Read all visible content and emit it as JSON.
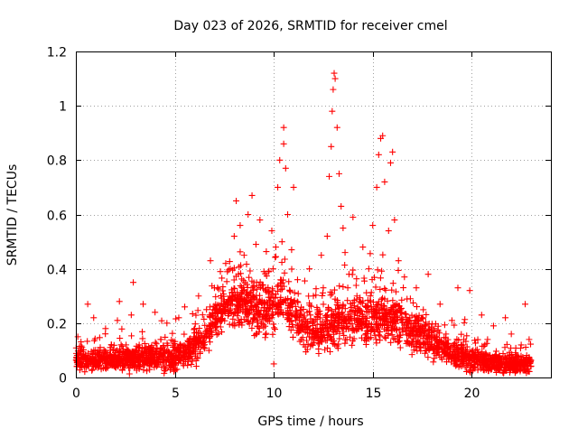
{
  "chart_data": {
    "type": "scatter",
    "title": "Day 023 of 2026, SRMTID for receiver cmel",
    "xlabel": "GPS time / hours",
    "ylabel": "SRMTID / TECUs",
    "xlim": [
      0,
      24
    ],
    "ylim": [
      0,
      1.2
    ],
    "x_ticks": [
      0,
      5,
      10,
      15,
      20
    ],
    "x_tick_labels": [
      "0",
      "5",
      "10",
      "15",
      "20"
    ],
    "y_ticks": [
      0,
      0.2,
      0.4,
      0.6,
      0.8,
      1.0,
      1.2
    ],
    "y_tick_labels": [
      "0",
      "0.2",
      "0.4",
      "0.6",
      "0.8",
      "1",
      "1.2"
    ],
    "grid": true,
    "legend": "none",
    "marker": "+",
    "point_color": "#ff0000",
    "series": [
      {
        "name": "SRMTID",
        "sample_points": [
          [
            0.1,
            0.15
          ],
          [
            0.3,
            0.05
          ],
          [
            0.6,
            0.27
          ],
          [
            0.9,
            0.22
          ],
          [
            1.2,
            0.08
          ],
          [
            1.5,
            0.18
          ],
          [
            1.8,
            0.12
          ],
          [
            2.1,
            0.21
          ],
          [
            2.2,
            0.28
          ],
          [
            2.5,
            0.06
          ],
          [
            2.8,
            0.23
          ],
          [
            2.9,
            0.35
          ],
          [
            3.2,
            0.12
          ],
          [
            3.4,
            0.27
          ],
          [
            3.7,
            0.09
          ],
          [
            4.0,
            0.24
          ],
          [
            4.3,
            0.14
          ],
          [
            4.6,
            0.2
          ],
          [
            4.9,
            0.07
          ],
          [
            5.2,
            0.22
          ],
          [
            5.5,
            0.26
          ],
          [
            5.7,
            0.12
          ],
          [
            6.0,
            0.18
          ],
          [
            6.2,
            0.3
          ],
          [
            6.6,
            0.25
          ],
          [
            6.8,
            0.43
          ],
          [
            7.0,
            0.33
          ],
          [
            7.3,
            0.39
          ],
          [
            7.5,
            0.28
          ],
          [
            7.8,
            0.4
          ],
          [
            8.0,
            0.52
          ],
          [
            8.1,
            0.65
          ],
          [
            8.3,
            0.56
          ],
          [
            8.5,
            0.45
          ],
          [
            8.7,
            0.6
          ],
          [
            8.8,
            0.31
          ],
          [
            8.9,
            0.67
          ],
          [
            9.1,
            0.49
          ],
          [
            9.3,
            0.58
          ],
          [
            9.5,
            0.39
          ],
          [
            9.7,
            0.27
          ],
          [
            9.9,
            0.54
          ],
          [
            10.0,
            0.05
          ],
          [
            10.1,
            0.48
          ],
          [
            10.2,
            0.7
          ],
          [
            10.3,
            0.8
          ],
          [
            10.5,
            0.86
          ],
          [
            10.5,
            0.92
          ],
          [
            10.6,
            0.77
          ],
          [
            10.7,
            0.6
          ],
          [
            10.9,
            0.47
          ],
          [
            11.0,
            0.7
          ],
          [
            11.2,
            0.36
          ],
          [
            11.5,
            0.22
          ],
          [
            11.8,
            0.4
          ],
          [
            12.0,
            0.3
          ],
          [
            12.2,
            0.17
          ],
          [
            12.4,
            0.45
          ],
          [
            12.5,
            0.33
          ],
          [
            12.7,
            0.52
          ],
          [
            12.8,
            0.74
          ],
          [
            12.9,
            0.85
          ],
          [
            12.95,
            0.98
          ],
          [
            13.0,
            1.06
          ],
          [
            13.05,
            1.12
          ],
          [
            13.1,
            1.1
          ],
          [
            13.2,
            0.92
          ],
          [
            13.3,
            0.75
          ],
          [
            13.4,
            0.63
          ],
          [
            13.5,
            0.55
          ],
          [
            13.6,
            0.46
          ],
          [
            13.8,
            0.38
          ],
          [
            14.0,
            0.59
          ],
          [
            14.2,
            0.3
          ],
          [
            14.5,
            0.48
          ],
          [
            14.8,
            0.4
          ],
          [
            15.0,
            0.56
          ],
          [
            15.2,
            0.7
          ],
          [
            15.3,
            0.82
          ],
          [
            15.4,
            0.88
          ],
          [
            15.5,
            0.89
          ],
          [
            15.6,
            0.72
          ],
          [
            15.8,
            0.54
          ],
          [
            15.9,
            0.79
          ],
          [
            16.0,
            0.83
          ],
          [
            16.1,
            0.58
          ],
          [
            16.3,
            0.43
          ],
          [
            16.6,
            0.37
          ],
          [
            16.9,
            0.29
          ],
          [
            17.2,
            0.33
          ],
          [
            17.5,
            0.22
          ],
          [
            17.8,
            0.38
          ],
          [
            18.1,
            0.18
          ],
          [
            18.4,
            0.27
          ],
          [
            18.7,
            0.16
          ],
          [
            19.0,
            0.21
          ],
          [
            19.3,
            0.33
          ],
          [
            19.6,
            0.14
          ],
          [
            19.9,
            0.32
          ],
          [
            20.2,
            0.1
          ],
          [
            20.5,
            0.23
          ],
          [
            20.8,
            0.14
          ],
          [
            21.1,
            0.19
          ],
          [
            21.4,
            0.08
          ],
          [
            21.7,
            0.22
          ],
          [
            22.0,
            0.16
          ],
          [
            22.2,
            0.02
          ],
          [
            22.5,
            0.12
          ],
          [
            22.7,
            0.27
          ],
          [
            22.9,
            0.14
          ]
        ],
        "noise_envelope": {
          "description": "dense cloud of points from 0 to 23 h; typical values follow this baseline",
          "hours": [
            0,
            2,
            4,
            5.5,
            6.5,
            7.5,
            8.5,
            9.5,
            10.5,
            11.5,
            12.5,
            13.5,
            14.5,
            15.5,
            16.5,
            17.5,
            18.5,
            19.5,
            20.5,
            21.5,
            23
          ],
          "median": [
            0.06,
            0.07,
            0.07,
            0.08,
            0.15,
            0.26,
            0.28,
            0.24,
            0.3,
            0.18,
            0.16,
            0.22,
            0.2,
            0.24,
            0.2,
            0.15,
            0.11,
            0.08,
            0.06,
            0.05,
            0.05
          ],
          "spread": [
            0.05,
            0.06,
            0.07,
            0.07,
            0.1,
            0.12,
            0.13,
            0.12,
            0.14,
            0.11,
            0.11,
            0.13,
            0.12,
            0.13,
            0.12,
            0.1,
            0.08,
            0.07,
            0.05,
            0.05,
            0.05
          ]
        }
      }
    ]
  }
}
